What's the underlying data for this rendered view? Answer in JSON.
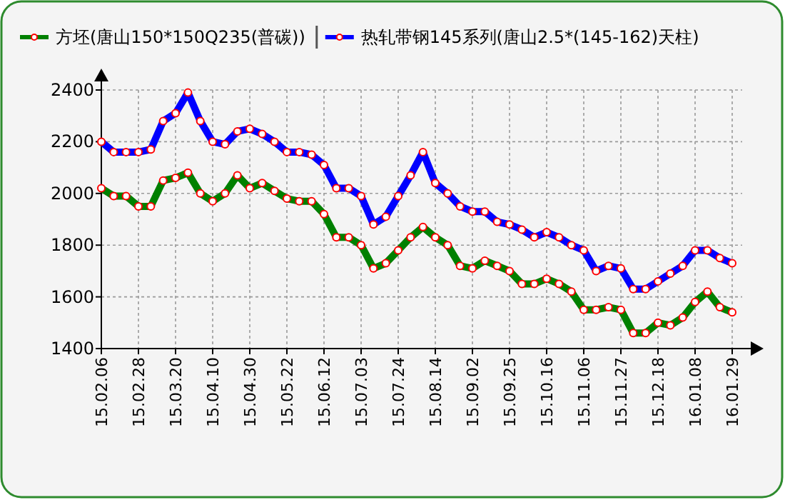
{
  "chart_data": {
    "type": "line",
    "categories": [
      "15.02.06",
      null,
      null,
      "15.02.28",
      null,
      null,
      "15.03.20",
      null,
      null,
      "15.04.10",
      null,
      null,
      "15.04.30",
      null,
      null,
      "15.05.22",
      null,
      null,
      "15.06.12",
      null,
      null,
      "15.07.03",
      null,
      null,
      "15.07.24",
      null,
      null,
      "15.08.14",
      null,
      null,
      "15.09.02",
      null,
      null,
      "15.09.25",
      null,
      null,
      "15.10.16",
      null,
      null,
      "15.11.06",
      null,
      null,
      "15.11.27",
      null,
      null,
      "15.12.18",
      null,
      null,
      "16.01.08",
      null,
      null,
      "16.01.29"
    ],
    "series": [
      {
        "name": "方坯(唐山150*150Q235(普碳))",
        "color": "#008000",
        "values": [
          2020,
          1990,
          1990,
          1950,
          1950,
          2050,
          2060,
          2080,
          2000,
          1970,
          2000,
          2070,
          2020,
          2040,
          2010,
          1980,
          1970,
          1970,
          1920,
          1830,
          1830,
          1800,
          1710,
          1730,
          1780,
          1830,
          1870,
          1830,
          1800,
          1720,
          1710,
          1740,
          1720,
          1700,
          1650,
          1650,
          1670,
          1650,
          1620,
          1550,
          1550,
          1560,
          1550,
          1460,
          1460,
          1500,
          1490,
          1520,
          1580,
          1620,
          1560,
          1540
        ]
      },
      {
        "name": "热轧带钢145系列(唐山2.5*(145-162)天柱)",
        "color": "#0000ff",
        "values": [
          2200,
          2160,
          2160,
          2160,
          2170,
          2280,
          2310,
          2390,
          2280,
          2200,
          2190,
          2240,
          2250,
          2230,
          2200,
          2160,
          2160,
          2150,
          2110,
          2020,
          2020,
          1990,
          1880,
          1910,
          1990,
          2070,
          2160,
          2040,
          2000,
          1950,
          1930,
          1930,
          1890,
          1880,
          1860,
          1830,
          1850,
          1830,
          1800,
          1780,
          1700,
          1720,
          1710,
          1630,
          1630,
          1660,
          1690,
          1720,
          1780,
          1780,
          1750,
          1730
        ]
      }
    ],
    "ylim": [
      1400,
      2400
    ],
    "yticks": [
      1400,
      1600,
      1800,
      2000,
      2200,
      2400
    ],
    "grid": true,
    "legend": "top",
    "marker": "circle",
    "line_style": "solid"
  }
}
